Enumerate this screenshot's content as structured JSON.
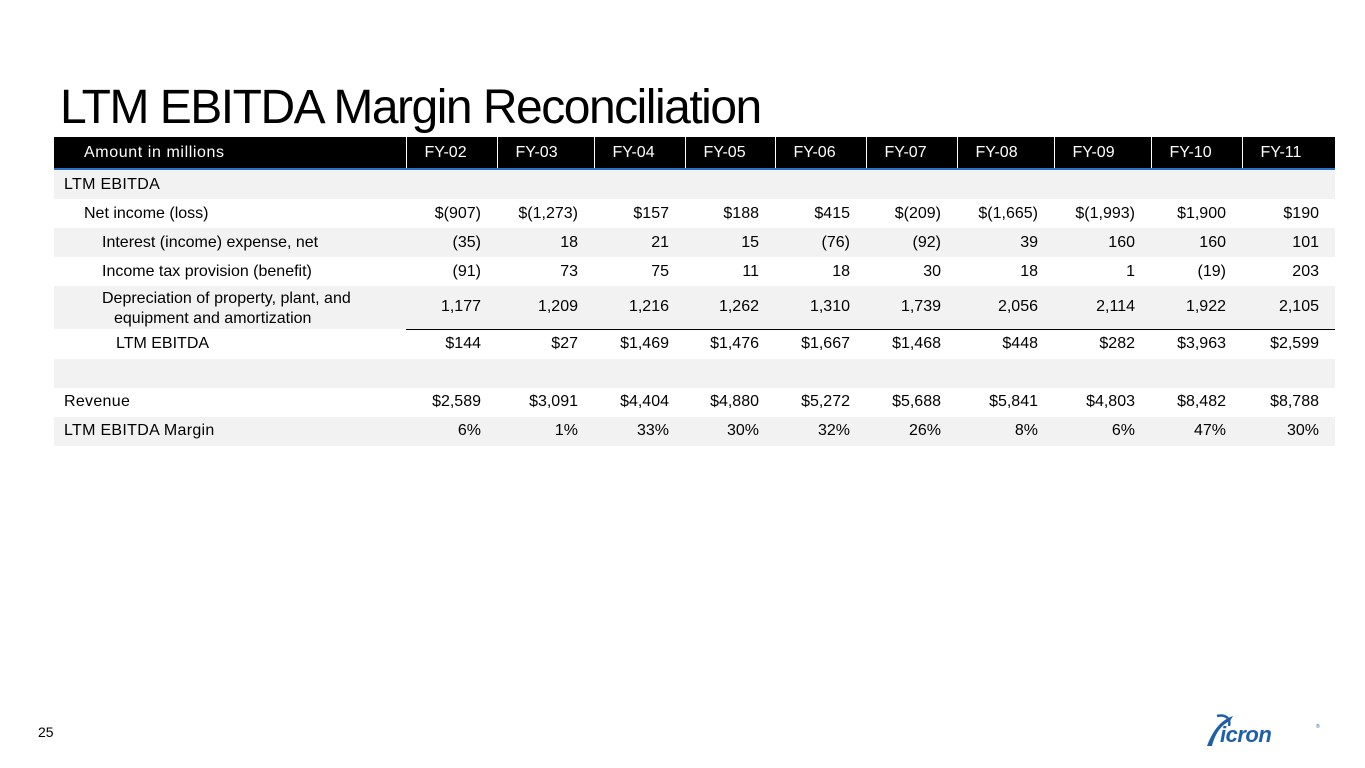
{
  "title": "LTM EBITDA Margin Reconciliation",
  "table": {
    "header": {
      "label": "Amount in millions",
      "years": [
        "FY-02",
        "FY-03",
        "FY-04",
        "FY-05",
        "FY-06",
        "FY-07",
        "FY-08",
        "FY-09",
        "FY-10",
        "FY-11"
      ]
    },
    "rows": {
      "section": {
        "label": "LTM EBITDA"
      },
      "net_income": {
        "label": "Net income (loss)",
        "values": [
          "$(907)",
          "$(1,273)",
          "$157",
          "$188",
          "$415",
          "$(209)",
          "$(1,665)",
          "$(1,993)",
          "$1,900",
          "$190"
        ]
      },
      "interest": {
        "label": "Interest (income) expense, net",
        "values": [
          "(35)",
          "18",
          "21",
          "15",
          "(76)",
          "(92)",
          "39",
          "160",
          "160",
          "101"
        ]
      },
      "income_tax": {
        "label": "Income tax provision (benefit)",
        "values": [
          "(91)",
          "73",
          "75",
          "11",
          "18",
          "30",
          "18",
          "1",
          "(19)",
          "203"
        ]
      },
      "depreciation": {
        "label_line1": "Depreciation of property, plant, and",
        "label_line2": "equipment and amortization",
        "values": [
          "1,177",
          "1,209",
          "1,216",
          "1,262",
          "1,310",
          "1,739",
          "2,056",
          "2,114",
          "1,922",
          "2,105"
        ]
      },
      "ebitda_total": {
        "label": "LTM EBITDA",
        "values": [
          "$144",
          "$27",
          "$1,469",
          "$1,476",
          "$1,667",
          "$1,468",
          "$448",
          "$282",
          "$3,963",
          "$2,599"
        ]
      },
      "revenue": {
        "label": "Revenue",
        "values": [
          "$2,589",
          "$3,091",
          "$4,404",
          "$4,880",
          "$5,272",
          "$5,688",
          "$5,841",
          "$4,803",
          "$8,482",
          "$8,788"
        ]
      },
      "margin": {
        "label": "LTM EBITDA Margin",
        "values": [
          "6%",
          "1%",
          "33%",
          "30%",
          "32%",
          "26%",
          "8%",
          "6%",
          "47%",
          "30%"
        ]
      }
    }
  },
  "footer": {
    "page_number": "25",
    "logo_text": "Micron",
    "logo_color": "#1f5fa8"
  }
}
